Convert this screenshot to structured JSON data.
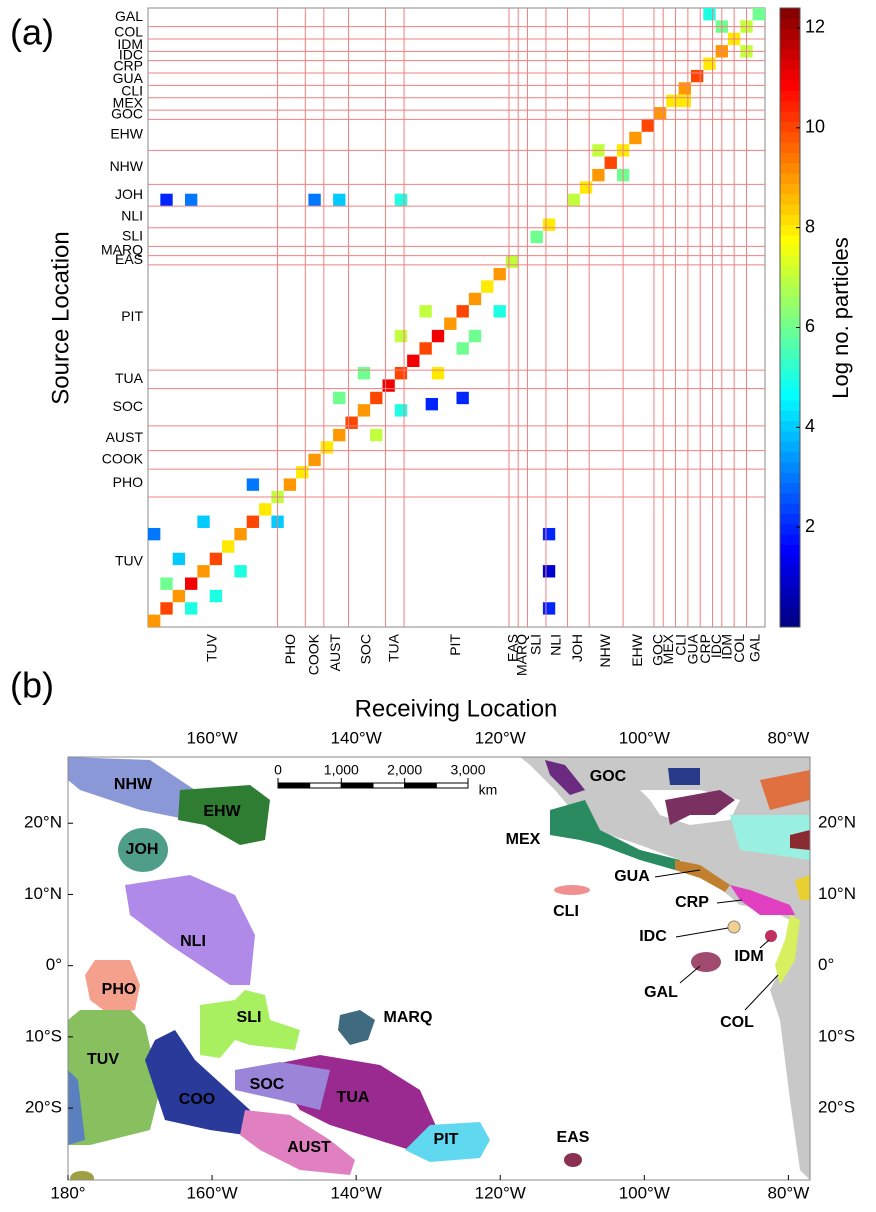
{
  "chart_data": [
    {
      "type": "heatmap",
      "panel_label": "(a)",
      "xlabel": "Receiving Location",
      "ylabel": "Source Location",
      "regions": [
        "TUV",
        "PHO",
        "COOK",
        "AUST",
        "SOC",
        "TUA",
        "PIT",
        "EAS",
        "MARQ",
        "SLI",
        "NLI",
        "JOH",
        "NHW",
        "EHW",
        "GOC",
        "MEX",
        "CLI",
        "GUA",
        "CRP",
        "IDC",
        "IDM",
        "COL",
        "GAL"
      ],
      "boundaries": [
        0,
        21,
        25.5,
        28.5,
        32.5,
        38.5,
        41.5,
        58.5,
        60,
        61.5,
        64.5,
        68,
        71.5,
        77,
        82,
        83.5,
        85.5,
        87.5,
        89.5,
        91.5,
        93,
        95,
        97,
        100
      ],
      "cells": [
        [
          0,
          0,
          9
        ],
        [
          2,
          2,
          10
        ],
        [
          4,
          4,
          9
        ],
        [
          6,
          6,
          11
        ],
        [
          8,
          8,
          9
        ],
        [
          10,
          10,
          10
        ],
        [
          12,
          12,
          8
        ],
        [
          14,
          14,
          9
        ],
        [
          16,
          16,
          10
        ],
        [
          18,
          18,
          8
        ],
        [
          20,
          20,
          7
        ],
        [
          22,
          22,
          9
        ],
        [
          24,
          24,
          8
        ],
        [
          26,
          26,
          9
        ],
        [
          28,
          28,
          8
        ],
        [
          30,
          30,
          9
        ],
        [
          32,
          32,
          10
        ],
        [
          34,
          34,
          9
        ],
        [
          36,
          36,
          10
        ],
        [
          38,
          38,
          11
        ],
        [
          40,
          40,
          10
        ],
        [
          42,
          42,
          11
        ],
        [
          44,
          44,
          10
        ],
        [
          46,
          46,
          11
        ],
        [
          48,
          48,
          9
        ],
        [
          50,
          50,
          10
        ],
        [
          52,
          52,
          9
        ],
        [
          54,
          54,
          8
        ],
        [
          56,
          56,
          9
        ],
        [
          58,
          58,
          7
        ],
        [
          62,
          62,
          6
        ],
        [
          64,
          64,
          8
        ],
        [
          68,
          68,
          7
        ],
        [
          70,
          70,
          8
        ],
        [
          72,
          72,
          9
        ],
        [
          74,
          74,
          10
        ],
        [
          76,
          76,
          8
        ],
        [
          78,
          78,
          9
        ],
        [
          80,
          80,
          10
        ],
        [
          82,
          82,
          9
        ],
        [
          84,
          84,
          8
        ],
        [
          86,
          86,
          9
        ],
        [
          88,
          88,
          10
        ],
        [
          90,
          90,
          8
        ],
        [
          92,
          92,
          9
        ],
        [
          94,
          94,
          8
        ],
        [
          96,
          96,
          7
        ],
        [
          98,
          98,
          6
        ],
        [
          2,
          6,
          6
        ],
        [
          6,
          2,
          5
        ],
        [
          4,
          10,
          4
        ],
        [
          10,
          4,
          5
        ],
        [
          0,
          14,
          3
        ],
        [
          8,
          16,
          4
        ],
        [
          14,
          8,
          5
        ],
        [
          20,
          16,
          4
        ],
        [
          16,
          22,
          3
        ],
        [
          30,
          36,
          6
        ],
        [
          36,
          30,
          7
        ],
        [
          34,
          40,
          6
        ],
        [
          40,
          34,
          5
        ],
        [
          44,
          50,
          7
        ],
        [
          50,
          44,
          6
        ],
        [
          46,
          40,
          8
        ],
        [
          40,
          46,
          7
        ],
        [
          52,
          46,
          6
        ],
        [
          56,
          50,
          5
        ],
        [
          45,
          35,
          2
        ],
        [
          50,
          36,
          2
        ],
        [
          64,
          2,
          2
        ],
        [
          64,
          8,
          1
        ],
        [
          64,
          14,
          2
        ],
        [
          2,
          68,
          2
        ],
        [
          6,
          68,
          3
        ],
        [
          30,
          68,
          4
        ],
        [
          40,
          68,
          5
        ],
        [
          26,
          68,
          3
        ],
        [
          76,
          72,
          6
        ],
        [
          72,
          76,
          7
        ],
        [
          86,
          84,
          8
        ],
        [
          92,
          96,
          6
        ],
        [
          96,
          92,
          7
        ],
        [
          90,
          98,
          5
        ]
      ],
      "colorbar": {
        "label": "Log no. particles",
        "lim": [
          0,
          12.4
        ],
        "ticks": [
          2,
          4,
          6,
          8,
          10,
          12
        ]
      }
    },
    {
      "type": "map",
      "panel_label": "(b)",
      "xlim": [
        -180,
        -77
      ],
      "ylim": [
        -30.1,
        29.3
      ],
      "xticks": [
        {
          "value": -180,
          "label": "180°"
        },
        {
          "value": -160,
          "label": "160°W"
        },
        {
          "value": -140,
          "label": "140°W"
        },
        {
          "value": -120,
          "label": "120°W"
        },
        {
          "value": -100,
          "label": "100°W"
        },
        {
          "value": -80,
          "label": "80°W"
        }
      ],
      "yticks": [
        {
          "value": 20,
          "label": "20°N"
        },
        {
          "value": 10,
          "label": "10°N"
        },
        {
          "value": 0,
          "label": "0°"
        },
        {
          "value": -10,
          "label": "10°S"
        },
        {
          "value": -20,
          "label": "20°S"
        }
      ],
      "labels": [
        "NHW",
        "EHW",
        "JOH",
        "NLI",
        "PHO",
        "SLI",
        "MARQ",
        "TUV",
        "COO",
        "SOC",
        "TUA",
        "AUST",
        "PIT",
        "EAS",
        "GOC",
        "MEX",
        "GUA",
        "CLI",
        "CRP",
        "IDC",
        "IDM",
        "GAL",
        "COL"
      ],
      "scalebar": {
        "ticks": [
          0,
          {
            "value": 1000,
            "label": "1,000"
          },
          {
            "value": 2000,
            "label": "2,000"
          },
          {
            "value": 3000,
            "label": "3,000"
          }
        ],
        "unit": "km"
      }
    }
  ]
}
